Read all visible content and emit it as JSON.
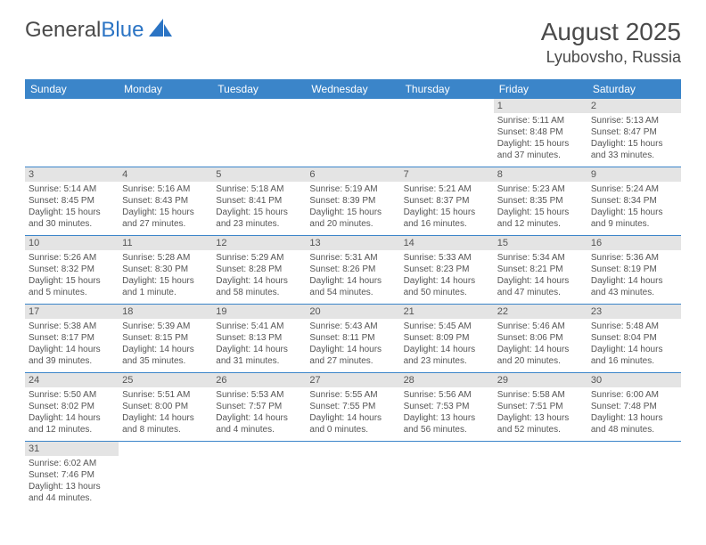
{
  "logo": {
    "text_dark": "General",
    "text_blue": "Blue"
  },
  "title": {
    "month": "August 2025",
    "location": "Lyubovsho, Russia"
  },
  "colors": {
    "header_bg": "#3b85c9",
    "header_text": "#ffffff",
    "daynum_bg": "#e4e4e4",
    "text": "#555555",
    "rule": "#3b85c9"
  },
  "day_headers": [
    "Sunday",
    "Monday",
    "Tuesday",
    "Wednesday",
    "Thursday",
    "Friday",
    "Saturday"
  ],
  "weeks": [
    [
      {
        "n": "",
        "lines": []
      },
      {
        "n": "",
        "lines": []
      },
      {
        "n": "",
        "lines": []
      },
      {
        "n": "",
        "lines": []
      },
      {
        "n": "",
        "lines": []
      },
      {
        "n": "1",
        "lines": [
          "Sunrise: 5:11 AM",
          "Sunset: 8:48 PM",
          "Daylight: 15 hours",
          "and 37 minutes."
        ]
      },
      {
        "n": "2",
        "lines": [
          "Sunrise: 5:13 AM",
          "Sunset: 8:47 PM",
          "Daylight: 15 hours",
          "and 33 minutes."
        ]
      }
    ],
    [
      {
        "n": "3",
        "lines": [
          "Sunrise: 5:14 AM",
          "Sunset: 8:45 PM",
          "Daylight: 15 hours",
          "and 30 minutes."
        ]
      },
      {
        "n": "4",
        "lines": [
          "Sunrise: 5:16 AM",
          "Sunset: 8:43 PM",
          "Daylight: 15 hours",
          "and 27 minutes."
        ]
      },
      {
        "n": "5",
        "lines": [
          "Sunrise: 5:18 AM",
          "Sunset: 8:41 PM",
          "Daylight: 15 hours",
          "and 23 minutes."
        ]
      },
      {
        "n": "6",
        "lines": [
          "Sunrise: 5:19 AM",
          "Sunset: 8:39 PM",
          "Daylight: 15 hours",
          "and 20 minutes."
        ]
      },
      {
        "n": "7",
        "lines": [
          "Sunrise: 5:21 AM",
          "Sunset: 8:37 PM",
          "Daylight: 15 hours",
          "and 16 minutes."
        ]
      },
      {
        "n": "8",
        "lines": [
          "Sunrise: 5:23 AM",
          "Sunset: 8:35 PM",
          "Daylight: 15 hours",
          "and 12 minutes."
        ]
      },
      {
        "n": "9",
        "lines": [
          "Sunrise: 5:24 AM",
          "Sunset: 8:34 PM",
          "Daylight: 15 hours",
          "and 9 minutes."
        ]
      }
    ],
    [
      {
        "n": "10",
        "lines": [
          "Sunrise: 5:26 AM",
          "Sunset: 8:32 PM",
          "Daylight: 15 hours",
          "and 5 minutes."
        ]
      },
      {
        "n": "11",
        "lines": [
          "Sunrise: 5:28 AM",
          "Sunset: 8:30 PM",
          "Daylight: 15 hours",
          "and 1 minute."
        ]
      },
      {
        "n": "12",
        "lines": [
          "Sunrise: 5:29 AM",
          "Sunset: 8:28 PM",
          "Daylight: 14 hours",
          "and 58 minutes."
        ]
      },
      {
        "n": "13",
        "lines": [
          "Sunrise: 5:31 AM",
          "Sunset: 8:26 PM",
          "Daylight: 14 hours",
          "and 54 minutes."
        ]
      },
      {
        "n": "14",
        "lines": [
          "Sunrise: 5:33 AM",
          "Sunset: 8:23 PM",
          "Daylight: 14 hours",
          "and 50 minutes."
        ]
      },
      {
        "n": "15",
        "lines": [
          "Sunrise: 5:34 AM",
          "Sunset: 8:21 PM",
          "Daylight: 14 hours",
          "and 47 minutes."
        ]
      },
      {
        "n": "16",
        "lines": [
          "Sunrise: 5:36 AM",
          "Sunset: 8:19 PM",
          "Daylight: 14 hours",
          "and 43 minutes."
        ]
      }
    ],
    [
      {
        "n": "17",
        "lines": [
          "Sunrise: 5:38 AM",
          "Sunset: 8:17 PM",
          "Daylight: 14 hours",
          "and 39 minutes."
        ]
      },
      {
        "n": "18",
        "lines": [
          "Sunrise: 5:39 AM",
          "Sunset: 8:15 PM",
          "Daylight: 14 hours",
          "and 35 minutes."
        ]
      },
      {
        "n": "19",
        "lines": [
          "Sunrise: 5:41 AM",
          "Sunset: 8:13 PM",
          "Daylight: 14 hours",
          "and 31 minutes."
        ]
      },
      {
        "n": "20",
        "lines": [
          "Sunrise: 5:43 AM",
          "Sunset: 8:11 PM",
          "Daylight: 14 hours",
          "and 27 minutes."
        ]
      },
      {
        "n": "21",
        "lines": [
          "Sunrise: 5:45 AM",
          "Sunset: 8:09 PM",
          "Daylight: 14 hours",
          "and 23 minutes."
        ]
      },
      {
        "n": "22",
        "lines": [
          "Sunrise: 5:46 AM",
          "Sunset: 8:06 PM",
          "Daylight: 14 hours",
          "and 20 minutes."
        ]
      },
      {
        "n": "23",
        "lines": [
          "Sunrise: 5:48 AM",
          "Sunset: 8:04 PM",
          "Daylight: 14 hours",
          "and 16 minutes."
        ]
      }
    ],
    [
      {
        "n": "24",
        "lines": [
          "Sunrise: 5:50 AM",
          "Sunset: 8:02 PM",
          "Daylight: 14 hours",
          "and 12 minutes."
        ]
      },
      {
        "n": "25",
        "lines": [
          "Sunrise: 5:51 AM",
          "Sunset: 8:00 PM",
          "Daylight: 14 hours",
          "and 8 minutes."
        ]
      },
      {
        "n": "26",
        "lines": [
          "Sunrise: 5:53 AM",
          "Sunset: 7:57 PM",
          "Daylight: 14 hours",
          "and 4 minutes."
        ]
      },
      {
        "n": "27",
        "lines": [
          "Sunrise: 5:55 AM",
          "Sunset: 7:55 PM",
          "Daylight: 14 hours",
          "and 0 minutes."
        ]
      },
      {
        "n": "28",
        "lines": [
          "Sunrise: 5:56 AM",
          "Sunset: 7:53 PM",
          "Daylight: 13 hours",
          "and 56 minutes."
        ]
      },
      {
        "n": "29",
        "lines": [
          "Sunrise: 5:58 AM",
          "Sunset: 7:51 PM",
          "Daylight: 13 hours",
          "and 52 minutes."
        ]
      },
      {
        "n": "30",
        "lines": [
          "Sunrise: 6:00 AM",
          "Sunset: 7:48 PM",
          "Daylight: 13 hours",
          "and 48 minutes."
        ]
      }
    ],
    [
      {
        "n": "31",
        "lines": [
          "Sunrise: 6:02 AM",
          "Sunset: 7:46 PM",
          "Daylight: 13 hours",
          "and 44 minutes."
        ]
      },
      {
        "n": "",
        "lines": []
      },
      {
        "n": "",
        "lines": []
      },
      {
        "n": "",
        "lines": []
      },
      {
        "n": "",
        "lines": []
      },
      {
        "n": "",
        "lines": []
      },
      {
        "n": "",
        "lines": []
      }
    ]
  ]
}
